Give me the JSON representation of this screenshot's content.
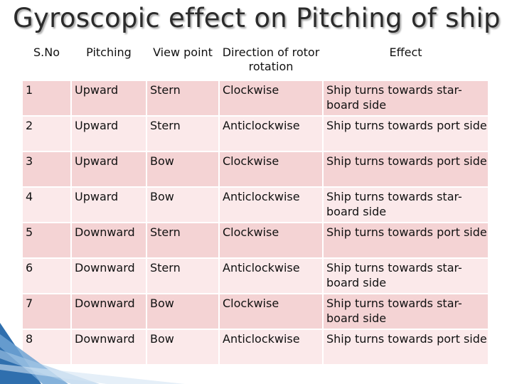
{
  "title": "Gyroscopic effect on Pitching of ship",
  "colors": {
    "header_bg": "#ffffff",
    "row_odd_bg": "#f4d3d4",
    "row_even_bg": "#fbe9ea",
    "border": "#ffffff",
    "accent_blue": "#2f6fae"
  },
  "table": {
    "headers": [
      "S.No",
      "Pitching",
      "View point",
      "Direction of rotor rotation",
      "Effect"
    ],
    "rows": [
      [
        "1",
        "Upward",
        "Stern",
        "Clockwise",
        "Ship turns towards star-board side"
      ],
      [
        "2",
        "Upward",
        "Stern",
        "Anticlockwise",
        "Ship turns towards port side"
      ],
      [
        "3",
        "Upward",
        "Bow",
        "Clockwise",
        "Ship turns towards port side"
      ],
      [
        "4",
        "Upward",
        "Bow",
        "Anticlockwise",
        "Ship turns towards star-board side"
      ],
      [
        "5",
        "Downward",
        "Stern",
        "Clockwise",
        "Ship turns towards port side"
      ],
      [
        "6",
        "Downward",
        "Stern",
        "Anticlockwise",
        "Ship turns towards star-board side"
      ],
      [
        "7",
        "Downward",
        "Bow",
        "Clockwise",
        "Ship turns towards star-board side"
      ],
      [
        "8",
        "Downward",
        "Bow",
        "Anticlockwise",
        "Ship turns towards port side"
      ]
    ]
  }
}
